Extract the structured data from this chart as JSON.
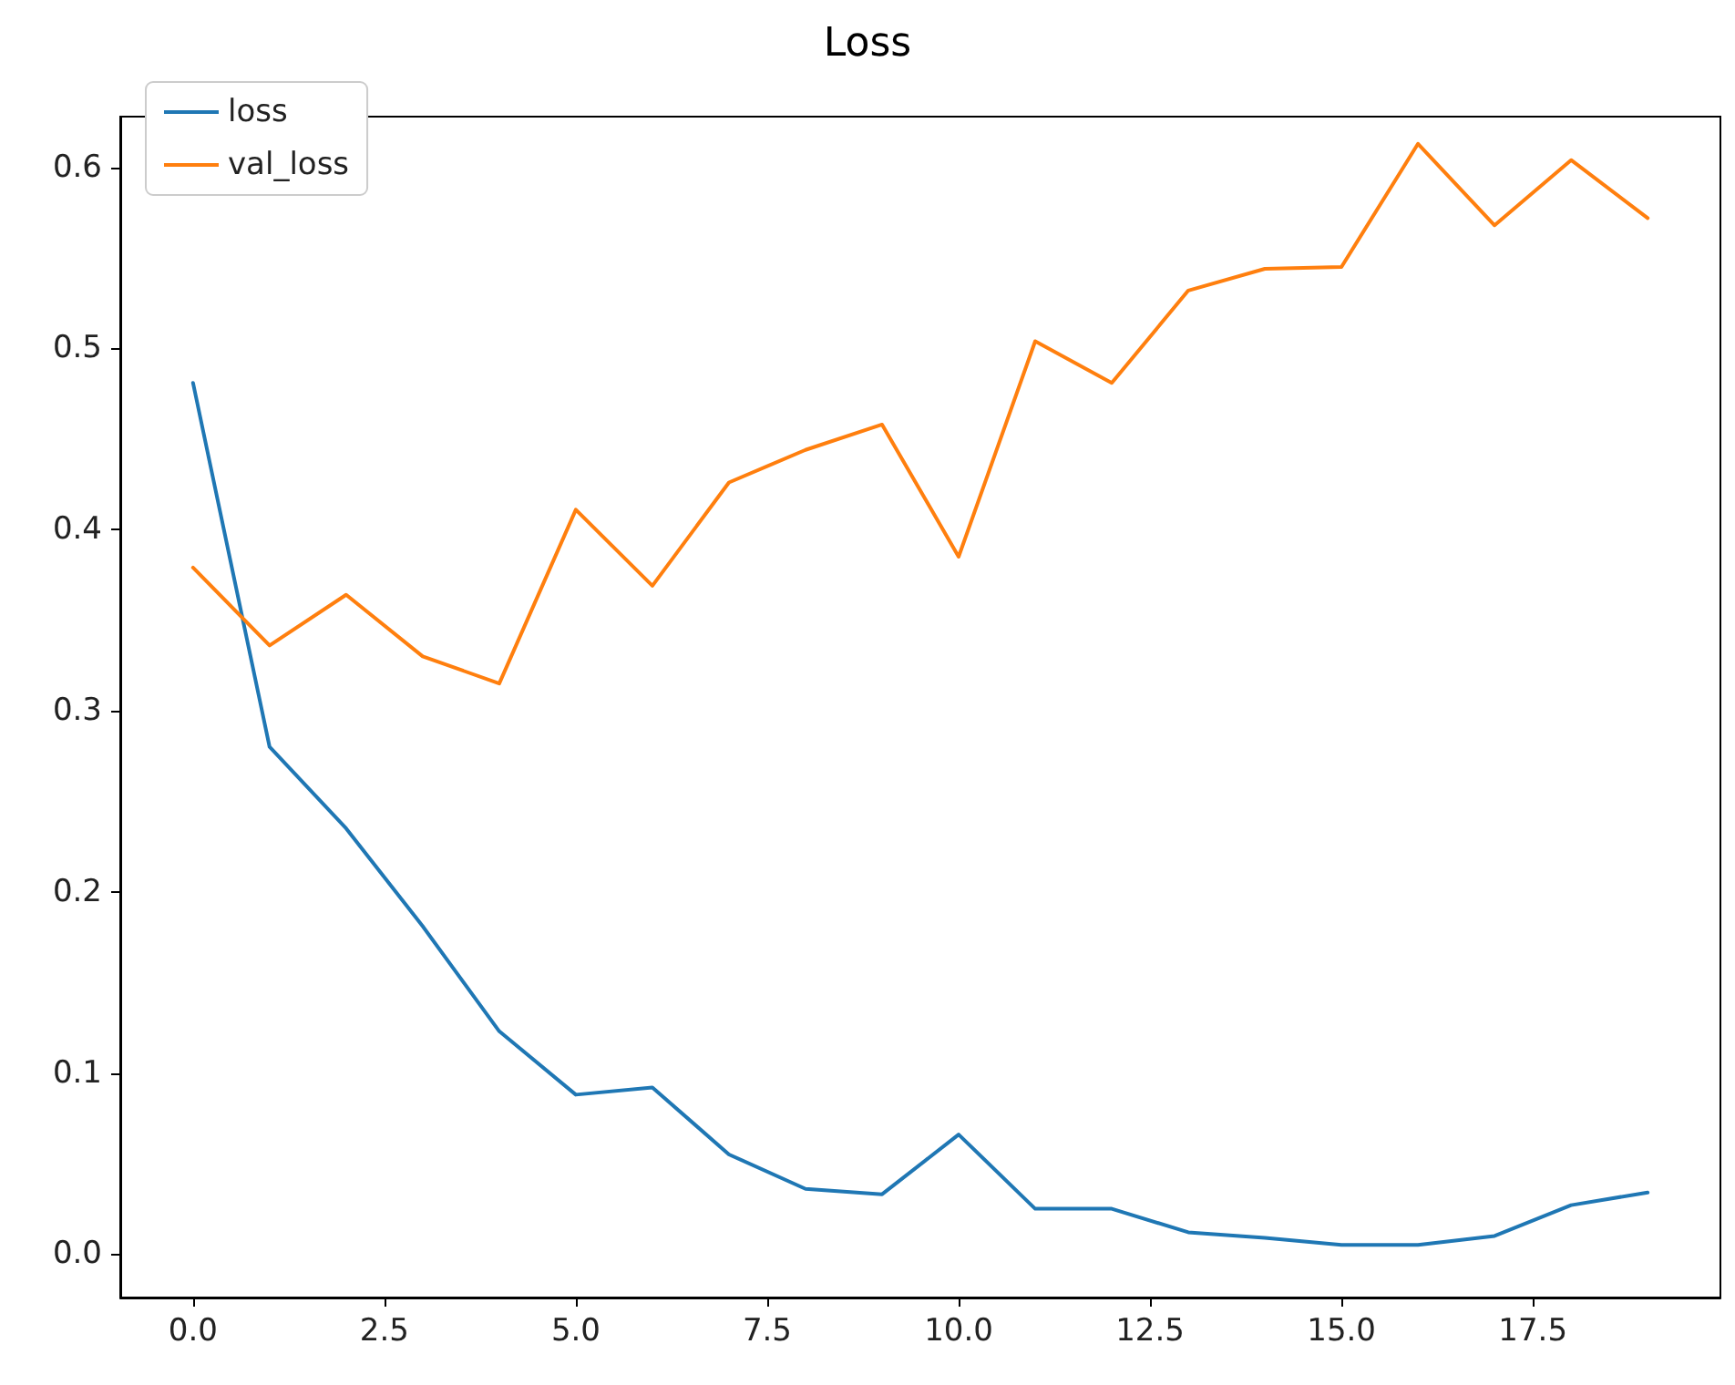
{
  "chart_data": {
    "type": "line",
    "title": "Loss",
    "x": [
      0,
      1,
      2,
      3,
      4,
      5,
      6,
      7,
      8,
      9,
      10,
      11,
      12,
      13,
      14,
      15,
      16,
      17,
      18,
      19
    ],
    "series": [
      {
        "name": "loss",
        "color": "#1f77b4",
        "values": [
          0.481,
          0.28,
          0.235,
          0.181,
          0.123,
          0.088,
          0.092,
          0.055,
          0.036,
          0.033,
          0.066,
          0.025,
          0.025,
          0.012,
          0.009,
          0.005,
          0.005,
          0.01,
          0.027,
          0.034
        ]
      },
      {
        "name": "val_loss",
        "color": "#ff7f0e",
        "values": [
          0.379,
          0.336,
          0.364,
          0.33,
          0.315,
          0.411,
          0.369,
          0.426,
          0.444,
          0.458,
          0.385,
          0.504,
          0.481,
          0.532,
          0.544,
          0.545,
          0.613,
          0.568,
          0.604,
          0.572
        ]
      }
    ],
    "xlim": [
      -0.95,
      19.95
    ],
    "xticks": [
      {
        "value": 0,
        "label": "0.0"
      },
      {
        "value": 2.5,
        "label": "2.5"
      },
      {
        "value": 5,
        "label": "5.0"
      },
      {
        "value": 7.5,
        "label": "7.5"
      },
      {
        "value": 10,
        "label": "10.0"
      },
      {
        "value": 12.5,
        "label": "12.5"
      },
      {
        "value": 15,
        "label": "15.0"
      },
      {
        "value": 17.5,
        "label": "17.5"
      }
    ],
    "ylim": [
      -0.024,
      0.628
    ],
    "yticks": [
      {
        "value": 0,
        "label": "0.0"
      },
      {
        "value": 0.1,
        "label": "0.1"
      },
      {
        "value": 0.2,
        "label": "0.2"
      },
      {
        "value": 0.3,
        "label": "0.3"
      },
      {
        "value": 0.4,
        "label": "0.4"
      },
      {
        "value": 0.5,
        "label": "0.5"
      },
      {
        "value": 0.6,
        "label": "0.6"
      }
    ],
    "legend": "top left",
    "marker": "none",
    "line_style": "solid",
    "grid": false
  }
}
